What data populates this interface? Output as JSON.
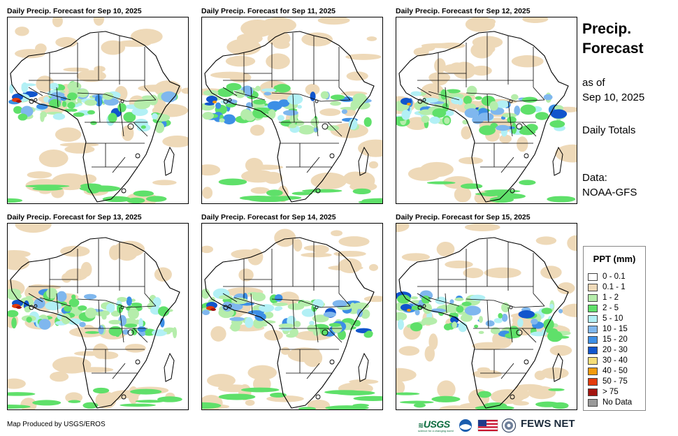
{
  "panels": [
    {
      "title": "Daily Precip. Forecast for Sep 10, 2025"
    },
    {
      "title": "Daily Precip. Forecast for Sep 11, 2025"
    },
    {
      "title": "Daily Precip. Forecast for Sep 12, 2025"
    },
    {
      "title": "Daily Precip. Forecast for Sep 13, 2025"
    },
    {
      "title": "Daily Precip. Forecast for Sep 14, 2025"
    },
    {
      "title": "Daily Precip. Forecast for Sep 15, 2025"
    }
  ],
  "side": {
    "title_line1": "Precip.",
    "title_line2": "Forecast",
    "asof_line1": "as of",
    "asof_line2": "Sep 10, 2025",
    "daily": "Daily Totals",
    "data_line1": "Data:",
    "data_line2": "NOAA-GFS"
  },
  "legend": {
    "title": "PPT (mm)",
    "items": [
      {
        "label": "0 - 0.1",
        "color": "#ffffff"
      },
      {
        "label": "0.1 - 1",
        "color": "#eed9b8"
      },
      {
        "label": "1 - 2",
        "color": "#b5edab"
      },
      {
        "label": "2 - 5",
        "color": "#5fe06a"
      },
      {
        "label": "5 - 10",
        "color": "#b2f0f5"
      },
      {
        "label": "10 - 15",
        "color": "#7fb7ee"
      },
      {
        "label": "15 - 20",
        "color": "#3d8fe6"
      },
      {
        "label": "20 - 30",
        "color": "#1155cc"
      },
      {
        "label": "30 - 40",
        "color": "#f5dd77"
      },
      {
        "label": "40 - 50",
        "color": "#f29a0d"
      },
      {
        "label": "50 - 75",
        "color": "#e33a0c"
      },
      {
        "label": "> 75",
        "color": "#a3140f"
      },
      {
        "label": "No Data",
        "color": "#999999"
      }
    ]
  },
  "footer": {
    "credit": "Map Produced by USGS/EROS",
    "usgs": "USGS",
    "usgs_tagline": "science for a changing world",
    "fews": "FEWS NET"
  }
}
